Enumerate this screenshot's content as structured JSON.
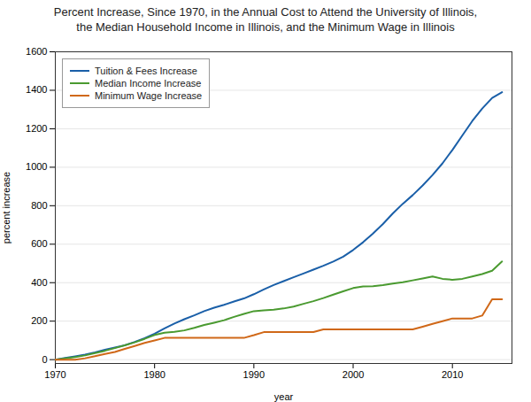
{
  "chart_data": {
    "type": "line",
    "title": "Percent Increase, Since 1970, in the Annual Cost to Attend the University of Illinois,\nthe Median Household Income in Illinois, and the Minimum Wage in Illinois",
    "xlabel": "year",
    "ylabel": "percent increase",
    "x": [
      1970,
      1971,
      1972,
      1973,
      1974,
      1975,
      1976,
      1977,
      1978,
      1979,
      1980,
      1981,
      1982,
      1983,
      1984,
      1985,
      1986,
      1987,
      1988,
      1989,
      1990,
      1991,
      1992,
      1993,
      1994,
      1995,
      1996,
      1997,
      1998,
      1999,
      2000,
      2001,
      2002,
      2003,
      2004,
      2005,
      2006,
      2007,
      2008,
      2009,
      2010,
      2011,
      2012,
      2013,
      2014,
      2015
    ],
    "series": [
      {
        "name": "Tuition & Fees Increase",
        "color": "#1a5fa8",
        "values": [
          0,
          9,
          17,
          26,
          38,
          52,
          63,
          75,
          92,
          112,
          135,
          162,
          188,
          210,
          230,
          252,
          270,
          285,
          302,
          318,
          340,
          365,
          388,
          408,
          428,
          448,
          468,
          488,
          510,
          535,
          570,
          610,
          655,
          705,
          760,
          810,
          855,
          905,
          960,
          1020,
          1090,
          1165,
          1240,
          1305,
          1360,
          1390
        ]
      },
      {
        "name": "Median Income Increase",
        "color": "#4a9a30",
        "values": [
          0,
          6,
          13,
          22,
          34,
          46,
          60,
          74,
          90,
          108,
          128,
          140,
          145,
          152,
          165,
          180,
          192,
          205,
          222,
          238,
          252,
          256,
          260,
          266,
          276,
          290,
          304,
          320,
          338,
          355,
          372,
          380,
          382,
          387,
          395,
          402,
          412,
          422,
          432,
          420,
          415,
          420,
          432,
          445,
          462,
          510
        ]
      },
      {
        "name": "Minimum Wage Increase",
        "color": "#d06818",
        "values": [
          0,
          0,
          0,
          7,
          18,
          29,
          40,
          56,
          71,
          87,
          100,
          113,
          113,
          113,
          113,
          113,
          113,
          113,
          113,
          113,
          127,
          143,
          143,
          143,
          143,
          143,
          143,
          157,
          157,
          157,
          157,
          157,
          157,
          157,
          157,
          157,
          157,
          171,
          186,
          200,
          214,
          214,
          214,
          229,
          314,
          314
        ]
      }
    ],
    "xlim": [
      1970,
      2016
    ],
    "ylim": [
      -20,
      1600
    ],
    "xticks": [
      1970,
      1980,
      1990,
      2000,
      2010
    ],
    "yticks": [
      0,
      200,
      400,
      600,
      800,
      1000,
      1200,
      1400,
      1600
    ],
    "grid": true,
    "legend": "upper left"
  }
}
